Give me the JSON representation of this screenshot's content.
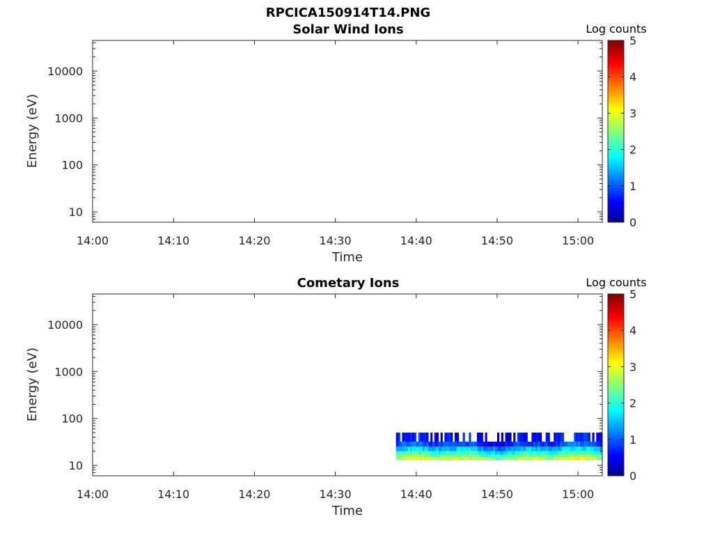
{
  "figure_title": "RPCICA150914T14.PNG",
  "colors": {
    "axis": "#262626",
    "background": "#ffffff"
  },
  "chart_data": [
    {
      "type": "heatmap",
      "title": "Solar Wind Ions",
      "xlabel": "Time",
      "ylabel": "Energy (eV)",
      "xticks": [
        "14:00",
        "14:10",
        "14:20",
        "14:30",
        "14:40",
        "14:50",
        "15:00"
      ],
      "xlim": [
        "14:00",
        "15:03"
      ],
      "yscale": "log",
      "yticks": [
        10,
        100,
        1000,
        10000
      ],
      "ytick_labels": [
        "10",
        "100",
        "1000",
        "10000"
      ],
      "ylim": [
        6,
        45000
      ],
      "colorbar": {
        "label": "Log counts",
        "ticks": [
          "0",
          "1",
          "2",
          "3",
          "4",
          "5"
        ],
        "range": [
          0,
          5
        ],
        "colormap": "jet"
      },
      "data_bands": []
    },
    {
      "type": "heatmap",
      "title": "Cometary Ions",
      "xlabel": "Time",
      "ylabel": "Energy (eV)",
      "xticks": [
        "14:00",
        "14:10",
        "14:20",
        "14:30",
        "14:40",
        "14:50",
        "15:00"
      ],
      "xlim": [
        "14:00",
        "15:03"
      ],
      "yscale": "log",
      "yticks": [
        10,
        100,
        1000,
        10000
      ],
      "ytick_labels": [
        "10",
        "100",
        "1000",
        "10000"
      ],
      "ylim": [
        6,
        45000
      ],
      "colorbar": {
        "label": "Log counts",
        "ticks": [
          "0",
          "1",
          "2",
          "3",
          "4",
          "5"
        ],
        "range": [
          0,
          5
        ],
        "colormap": "jet"
      },
      "data_start": "14:37:30",
      "data_end": "15:03:00",
      "data_bands": [
        {
          "e_low": 32,
          "e_high": 50,
          "log_counts": 0.6
        },
        {
          "e_low": 25,
          "e_high": 32,
          "log_counts": 0.9
        },
        {
          "e_low": 20,
          "e_high": 25,
          "log_counts": 1.5
        },
        {
          "e_low": 17,
          "e_high": 20,
          "log_counts": 2.0
        },
        {
          "e_low": 15,
          "e_high": 17,
          "log_counts": 2.4
        },
        {
          "e_low": 13,
          "e_high": 15,
          "log_counts": 2.7
        }
      ]
    }
  ]
}
